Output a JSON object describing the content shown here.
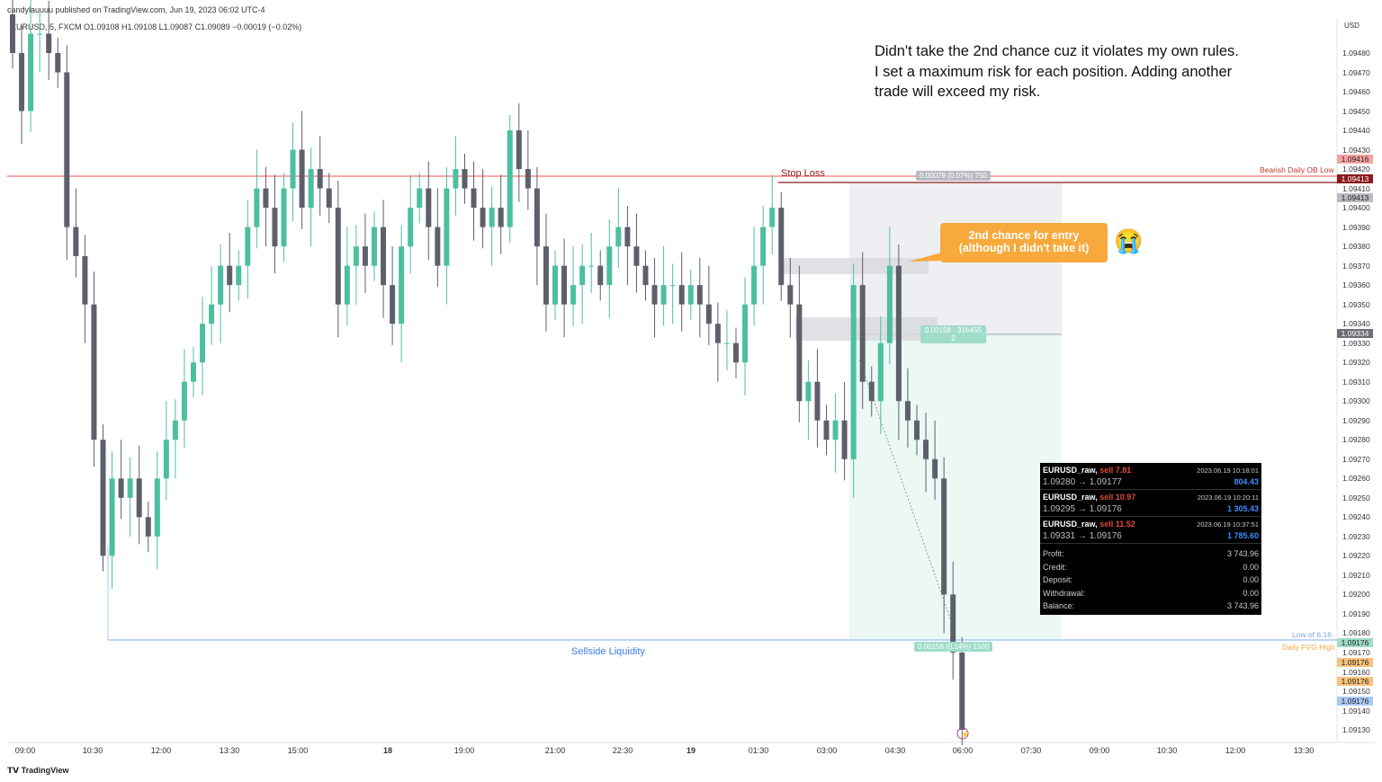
{
  "header": {
    "publisher": "candylauuuu published on TradingView.com, Jun 19, 2023 06:02 UTC-4",
    "symbol_line": "EURUSD, 5, FXCM  O1.09108  H1.09108  L1.09087  C1.09089  −0.00019 (−0.02%)"
  },
  "annotation_text": [
    "Didn't take the 2nd chance cuz it violates my own rules.",
    "I set a maximum risk for each position. Adding another",
    "trade will exceed my risk."
  ],
  "callout": {
    "line1": "2nd chance for entry",
    "line2": "(although I didn't take it)",
    "emoji": "😭",
    "color": "#f7a93b"
  },
  "labels": {
    "stop_loss": "Stop Loss",
    "sellside": "Sellside Liquidity",
    "ob_low": "Bearish Daily OB Low",
    "low_of": "Low of 6.16",
    "fvg_high": "Daily FVG High",
    "risk": "0.00079 (0.07%) 750",
    "mid": "0.00158 - 316455",
    "mid2": "2",
    "target": "0.00158 (0.14%) 1500",
    "currency": "USD",
    "logo": "TradingView"
  },
  "price_tags": [
    {
      "text": "1.09416",
      "bg": "#f7a1a1",
      "fg": "#222"
    },
    {
      "text": "1.09413",
      "bg": "#8b1a1a",
      "fg": "#fff"
    },
    {
      "text": "1.09413",
      "bg": "#b9bbc2",
      "fg": "#222"
    },
    {
      "text": "1.09334",
      "bg": "#6b6e77",
      "fg": "#fff"
    },
    {
      "text": "1.09176",
      "bg": "#9fdcc9",
      "fg": "#222"
    },
    {
      "text": "1.09176",
      "bg": "#f9c27a",
      "fg": "#222"
    },
    {
      "text": "1.09176",
      "bg": "#f9c27a",
      "fg": "#222"
    },
    {
      "text": "1.09176",
      "bg": "#a9c9f5",
      "fg": "#222"
    }
  ],
  "trades": [
    {
      "symbol": "EURUSD_raw,",
      "side": "sell 7.81",
      "time": "2023.06.19 10:18:01",
      "prices": "1.09280 → 1.09177",
      "profit": "804.43"
    },
    {
      "symbol": "EURUSD_raw,",
      "side": "sell 10.97",
      "time": "2023.06.19 10:20:11",
      "prices": "1.09295 → 1.09176",
      "profit": "1 305.43"
    },
    {
      "symbol": "EURUSD_raw,",
      "side": "sell 11.52",
      "time": "2023.06.19 10:37:51",
      "prices": "1.09331 → 1.09176",
      "profit": "1 785.60"
    }
  ],
  "summary": [
    {
      "k": "Profit:",
      "v": "3 743.96"
    },
    {
      "k": "Credit:",
      "v": "0.00"
    },
    {
      "k": "Deposit:",
      "v": "0.00"
    },
    {
      "k": "Withdrawal:",
      "v": "0.00"
    },
    {
      "k": "Balance:",
      "v": "3 743.96"
    }
  ],
  "chart_data": {
    "type": "candlestick",
    "symbol": "EURUSD",
    "timeframe": "5",
    "colors": {
      "up": "#4cbfa0",
      "down": "#5d606b"
    },
    "ylim": [
      1.0912,
      1.0949
    ],
    "y_ticks": [
      "1.09480",
      "1.09470",
      "1.09460",
      "1.09450",
      "1.09440",
      "1.09430",
      "1.09420",
      "1.09410",
      "1.09400",
      "1.09390",
      "1.09380",
      "1.09370",
      "1.09360",
      "1.09350",
      "1.09340",
      "1.09330",
      "1.09320",
      "1.09310",
      "1.09300",
      "1.09290",
      "1.09280",
      "1.09270",
      "1.09260",
      "1.09250",
      "1.09240",
      "1.09230",
      "1.09220",
      "1.09210",
      "1.09200",
      "1.09190",
      "1.09180",
      "1.09170",
      "1.09160",
      "1.09150",
      "1.09140",
      "1.09130"
    ],
    "x_ticks": [
      "09:00",
      "10:30",
      "12:00",
      "13:30",
      "15:00",
      "18",
      "19:00",
      "21:00",
      "22:30",
      "19",
      "01:30",
      "03:00",
      "04:30",
      "06:00",
      "07:30",
      "09:00",
      "10:30",
      "12:00",
      "13:30"
    ],
    "levels": {
      "bearish_ob_low": 1.09416,
      "stop_loss": 1.09413,
      "entry": 1.09334,
      "sellside_liquidity": 1.09176
    },
    "closes": [
      1.0948,
      1.0945,
      1.0949,
      1.0949,
      1.0948,
      1.0947,
      1.0939,
      1.09375,
      1.0935,
      1.0928,
      1.0922,
      1.0926,
      1.0925,
      1.0926,
      1.0924,
      1.0923,
      1.0926,
      1.0928,
      1.0929,
      1.0931,
      1.0932,
      1.0934,
      1.0935,
      1.0937,
      1.0936,
      1.0937,
      1.0939,
      1.0941,
      1.094,
      1.0938,
      1.0941,
      1.0943,
      1.094,
      1.0942,
      1.0941,
      1.094,
      1.0935,
      1.0937,
      1.0938,
      1.0937,
      1.0939,
      1.0936,
      1.0934,
      1.0938,
      1.094,
      1.0941,
      1.0939,
      1.0937,
      1.0941,
      1.0942,
      1.0941,
      1.094,
      1.0939,
      1.094,
      1.0939,
      1.0944,
      1.0942,
      1.0941,
      1.0938,
      1.0935,
      1.0937,
      1.0935,
      1.0936,
      1.0937,
      1.0937,
      1.0936,
      1.0938,
      1.0939,
      1.0938,
      1.0937,
      1.0936,
      1.0935,
      1.0936,
      1.0936,
      1.0935,
      1.0936,
      1.0935,
      1.0934,
      1.0933,
      1.0933,
      1.0932,
      1.0935,
      1.0937,
      1.0939,
      1.094,
      1.0936,
      1.0935,
      1.093,
      1.0931,
      1.0929,
      1.0928,
      1.0929,
      1.0927,
      1.0936,
      1.0931,
      1.093,
      1.0933,
      1.0937,
      1.093,
      1.0929,
      1.0928,
      1.0927,
      1.0926,
      1.092,
      1.0917,
      1.0913
    ]
  }
}
